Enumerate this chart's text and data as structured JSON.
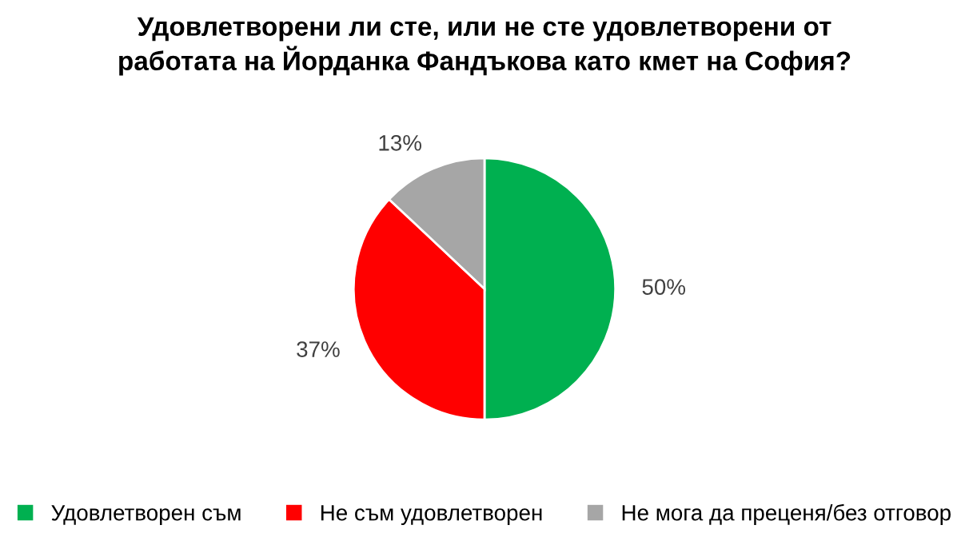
{
  "chart_data": {
    "type": "pie",
    "title": "Удовлетворени ли сте, или не сте удовлетворени от\nработата на Йорданка Фандъкова като кмет на София?",
    "categories": [
      "Удовлетворен съм",
      "Не съм удовлетворен",
      "Не мога да преценя/без отговор"
    ],
    "values": [
      50,
      37,
      13
    ],
    "colors": [
      "#00b050",
      "#ff0000",
      "#a6a6a6"
    ],
    "value_labels": [
      "50%",
      "37%",
      "13%"
    ],
    "legend": "bottom"
  }
}
